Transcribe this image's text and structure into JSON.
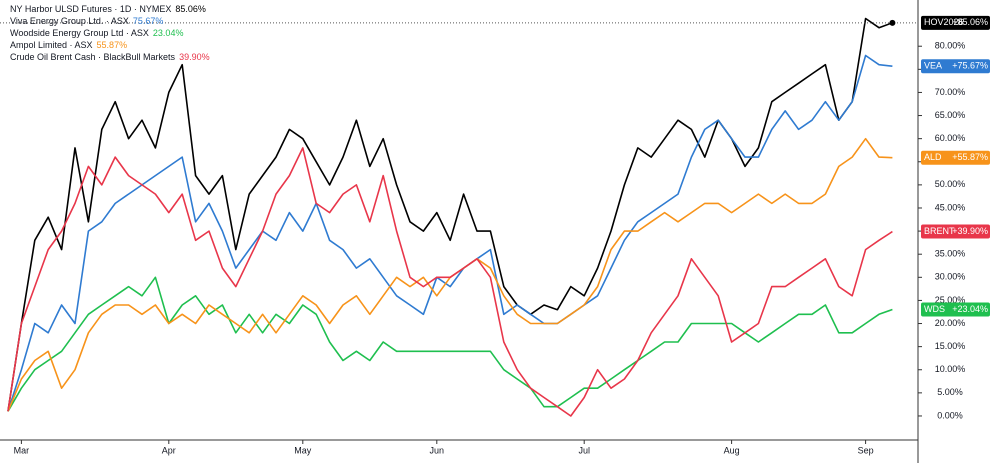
{
  "chart_data": {
    "type": "line",
    "categories": [
      null,
      "Mar",
      null,
      null,
      null,
      null,
      null,
      null,
      null,
      null,
      null,
      null,
      "Apr",
      null,
      null,
      null,
      null,
      null,
      null,
      null,
      null,
      null,
      "May",
      null,
      null,
      null,
      null,
      null,
      null,
      null,
      null,
      null,
      "Jun",
      null,
      null,
      null,
      null,
      null,
      null,
      null,
      null,
      null,
      null,
      "Jul",
      null,
      null,
      null,
      null,
      null,
      null,
      null,
      null,
      null,
      null,
      "Aug",
      null,
      null,
      null,
      null,
      null,
      null,
      null,
      null,
      null,
      "Sep",
      null,
      null
    ],
    "ylim": [
      -5.2,
      90
    ],
    "yticks": [
      {
        "value": 0,
        "label": "0.00%"
      },
      {
        "value": 5,
        "label": "5.00%"
      },
      {
        "value": 10,
        "label": "10.00%"
      },
      {
        "value": 15,
        "label": "15.00%"
      },
      {
        "value": 20,
        "label": "20.00%"
      },
      {
        "value": 25,
        "label": "25.00%"
      },
      {
        "value": 30,
        "label": "30.00%"
      },
      {
        "value": 35,
        "label": "35.00%"
      },
      {
        "value": 40,
        "label": "40.00%"
      },
      {
        "value": 45,
        "label": "45.00%"
      },
      {
        "value": 50,
        "label": "50.00%"
      },
      {
        "value": 55,
        "label": "55.00%"
      },
      {
        "value": 60,
        "label": "60.00%"
      },
      {
        "value": 65,
        "label": "65.00%"
      },
      {
        "value": 70,
        "label": "70.00%"
      },
      {
        "value": 75,
        "label": "75.00%"
      },
      {
        "value": 80,
        "label": "80.00%"
      }
    ],
    "grid": false,
    "series": [
      {
        "name": "NY Harbor ULSD Futures · 1D · NYMEX",
        "symbol": "HOV2026",
        "color": "#000000",
        "legend_label": "85.06%",
        "axis_label": "+85.06%",
        "values": [
          1,
          20,
          38,
          43,
          36,
          58,
          42,
          62,
          68,
          60,
          64,
          58,
          70,
          76,
          52,
          48,
          52,
          36,
          48,
          52,
          56,
          62,
          60,
          55,
          50,
          56,
          64,
          54,
          60,
          50,
          42,
          40,
          44,
          38,
          48,
          40,
          40,
          28,
          24,
          22,
          24,
          23,
          28,
          26,
          32,
          40,
          50,
          58,
          56,
          60,
          64,
          62,
          56,
          64,
          60,
          54,
          58,
          68,
          70,
          72,
          74,
          76,
          64,
          68,
          86,
          84,
          85.06
        ]
      },
      {
        "name": "Viva Energy Group Ltd. · ASX",
        "symbol": "VEA",
        "color": "#2f7bd1",
        "legend_label": "75.67%",
        "axis_label": "+75.67%",
        "values": [
          1,
          10,
          20,
          18,
          24,
          20,
          40,
          42,
          46,
          48,
          50,
          52,
          54,
          56,
          42,
          46,
          40,
          32,
          36,
          40,
          38,
          44,
          40,
          46,
          38,
          36,
          32,
          34,
          30,
          26,
          24,
          22,
          30,
          28,
          32,
          34,
          36,
          22,
          24,
          22,
          20,
          20,
          22,
          24,
          26,
          32,
          38,
          42,
          44,
          46,
          48,
          56,
          62,
          64,
          60,
          56,
          56,
          62,
          66,
          62,
          64,
          68,
          64,
          68,
          78,
          76,
          75.67
        ]
      },
      {
        "name": "Woodside Energy Group Ltd · ASX",
        "symbol": "WDS",
        "color": "#1fbf4f",
        "legend_label": "23.04%",
        "axis_label": "+23.04%",
        "values": [
          1,
          6,
          10,
          12,
          14,
          18,
          22,
          24,
          26,
          28,
          26,
          30,
          20,
          24,
          26,
          22,
          24,
          18,
          22,
          18,
          22,
          20,
          24,
          22,
          16,
          12,
          14,
          12,
          16,
          14,
          14,
          14,
          14,
          14,
          14,
          14,
          14,
          10,
          8,
          6,
          2,
          2,
          4,
          6,
          6,
          8,
          10,
          12,
          14,
          16,
          16,
          20,
          20,
          20,
          20,
          18,
          16,
          18,
          20,
          22,
          22,
          24,
          18,
          18,
          20,
          22,
          23.04
        ]
      },
      {
        "name": "Ampol Limited · ASX",
        "symbol": "ALD",
        "color": "#f7931a",
        "legend_label": "55.87%",
        "axis_label": "+55.87%",
        "values": [
          1,
          8,
          12,
          14,
          6,
          10,
          18,
          22,
          24,
          24,
          22,
          24,
          20,
          22,
          20,
          24,
          22,
          20,
          18,
          22,
          18,
          22,
          26,
          24,
          20,
          24,
          26,
          22,
          26,
          30,
          28,
          30,
          26,
          30,
          32,
          34,
          32,
          26,
          22,
          20,
          20,
          20,
          22,
          24,
          28,
          36,
          40,
          40,
          42,
          44,
          42,
          44,
          46,
          46,
          44,
          46,
          48,
          46,
          48,
          46,
          46,
          48,
          54,
          56,
          60,
          56,
          55.87
        ]
      },
      {
        "name": "Crude Oil Brent Cash · BlackBull Markets",
        "symbol": "BRENT",
        "color": "#e8364a",
        "legend_label": "39.90%",
        "axis_label": "+39.90%",
        "values": [
          1,
          20,
          28,
          36,
          40,
          46,
          54,
          50,
          56,
          52,
          50,
          48,
          44,
          48,
          38,
          40,
          32,
          28,
          34,
          40,
          48,
          52,
          58,
          46,
          44,
          48,
          50,
          42,
          52,
          40,
          30,
          28,
          30,
          30,
          32,
          34,
          30,
          16,
          10,
          6,
          4,
          2,
          0,
          4,
          10,
          6,
          8,
          12,
          18,
          22,
          26,
          34,
          30,
          26,
          16,
          18,
          20,
          28,
          28,
          30,
          32,
          34,
          28,
          26,
          36,
          38,
          39.9
        ]
      }
    ]
  }
}
